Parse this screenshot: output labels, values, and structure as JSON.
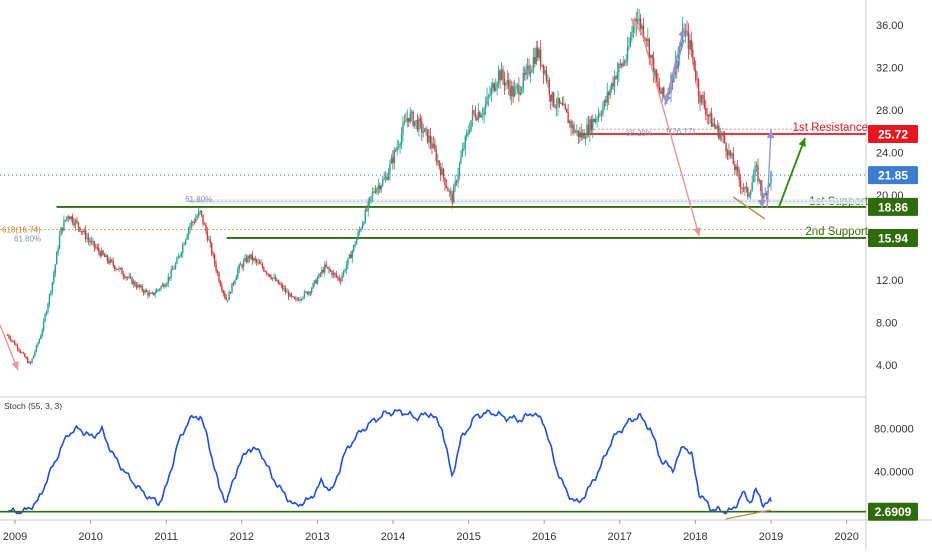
{
  "chart_data": [
    {
      "panel": "price",
      "type": "candlestick",
      "x_range": [
        2008.9,
        2020.9
      ],
      "ylim": [
        2,
        38.5
      ],
      "y_ticks": [
        "4.00",
        "8.00",
        "12.00",
        "16.00",
        "20.00",
        "24.00",
        "28.00",
        "32.00",
        "36.00"
      ],
      "y_tick_values": [
        4,
        8,
        12,
        16,
        20,
        24,
        28,
        32,
        36
      ],
      "grid": false,
      "price_path": [
        [
          2008.9,
          6.8
        ],
        [
          2009.05,
          5.5
        ],
        [
          2009.2,
          4.0
        ],
        [
          2009.35,
          7.0
        ],
        [
          2009.5,
          12.0
        ],
        [
          2009.6,
          16.5
        ],
        [
          2009.7,
          18.2
        ],
        [
          2009.85,
          17.0
        ],
        [
          2010.0,
          15.5
        ],
        [
          2010.2,
          14.0
        ],
        [
          2010.4,
          12.8
        ],
        [
          2010.6,
          11.5
        ],
        [
          2010.8,
          10.5
        ],
        [
          2011.0,
          11.8
        ],
        [
          2011.15,
          13.8
        ],
        [
          2011.3,
          17.0
        ],
        [
          2011.45,
          18.3
        ],
        [
          2011.55,
          16.0
        ],
        [
          2011.7,
          12.0
        ],
        [
          2011.8,
          10.0
        ],
        [
          2011.95,
          13.0
        ],
        [
          2012.1,
          14.2
        ],
        [
          2012.3,
          13.0
        ],
        [
          2012.5,
          11.5
        ],
        [
          2012.7,
          10.0
        ],
        [
          2012.9,
          11.0
        ],
        [
          2013.1,
          13.2
        ],
        [
          2013.3,
          12.0
        ],
        [
          2013.45,
          14.5
        ],
        [
          2013.6,
          17.5
        ],
        [
          2013.75,
          20.5
        ],
        [
          2013.9,
          21.5
        ],
        [
          2014.05,
          24.5
        ],
        [
          2014.2,
          27.5
        ],
        [
          2014.35,
          26.5
        ],
        [
          2014.5,
          25.0
        ],
        [
          2014.65,
          22.0
        ],
        [
          2014.78,
          19.5
        ],
        [
          2014.9,
          23.5
        ],
        [
          2015.05,
          27.5
        ],
        [
          2015.2,
          28.0
        ],
        [
          2015.4,
          31.5
        ],
        [
          2015.6,
          29.5
        ],
        [
          2015.75,
          31.0
        ],
        [
          2015.9,
          33.5
        ],
        [
          2016.0,
          32.0
        ],
        [
          2016.1,
          29.0
        ],
        [
          2016.25,
          28.0
        ],
        [
          2016.4,
          26.0
        ],
        [
          2016.5,
          25.5
        ],
        [
          2016.65,
          27.0
        ],
        [
          2016.8,
          28.5
        ],
        [
          2016.95,
          31.5
        ],
        [
          2017.1,
          33.0
        ],
        [
          2017.2,
          37.0
        ],
        [
          2017.35,
          35.0
        ],
        [
          2017.5,
          30.0
        ],
        [
          2017.6,
          29.0
        ],
        [
          2017.75,
          32.5
        ],
        [
          2017.85,
          35.5
        ],
        [
          2017.95,
          33.5
        ],
        [
          2018.05,
          29.5
        ],
        [
          2018.2,
          27.0
        ],
        [
          2018.35,
          25.5
        ],
        [
          2018.5,
          23.0
        ],
        [
          2018.6,
          21.0
        ],
        [
          2018.7,
          20.0
        ],
        [
          2018.8,
          22.5
        ],
        [
          2018.9,
          19.5
        ],
        [
          2019.0,
          21.85
        ]
      ],
      "horizontal_levels": [
        {
          "label": "1st Resistance",
          "value": 25.72,
          "price_tag": "25.72",
          "color": "#e8171f"
        },
        {
          "label": "1st Support",
          "value": 18.86,
          "price_tag": "18.86",
          "color": "#2f6b0a"
        },
        {
          "label": "2nd Support",
          "value": 15.94,
          "price_tag": "15.94",
          "color": "#2f6b0a"
        },
        {
          "value": 21.85,
          "price_tag": "21.85",
          "color": "#3a7dd1",
          "role": "last price"
        }
      ],
      "annotations": [
        "38.20%",
        "1(26.17)",
        "61.80%",
        "618(16.74)",
        "61.80%"
      ]
    },
    {
      "panel": "oscillator",
      "type": "line",
      "indicator": "Stoch (55, 3, 3)",
      "x_ticks": [
        "2009",
        "2010",
        "2011",
        "2012",
        "2013",
        "2014",
        "2015",
        "2016",
        "2017",
        "2018",
        "2019",
        "2020"
      ],
      "x_tick_values": [
        2009,
        2010,
        2011,
        2012,
        2013,
        2014,
        2015,
        2016,
        2017,
        2018,
        2019,
        2020
      ],
      "y_ticks": [
        "40.0000",
        "80.0000"
      ],
      "y_tick_values": [
        40,
        80
      ],
      "ylim": [
        0,
        100
      ],
      "support": {
        "value": 2.6909,
        "label": "2.6909",
        "color": "#2f6b0a"
      },
      "series": [
        {
          "color": "#1f4fd6",
          "points": [
            [
              2008.9,
              3
            ],
            [
              2009.1,
              2
            ],
            [
              2009.3,
              12
            ],
            [
              2009.5,
              45
            ],
            [
              2009.7,
              75
            ],
            [
              2009.85,
              80
            ],
            [
              2010.0,
              72
            ],
            [
              2010.15,
              78
            ],
            [
              2010.3,
              55
            ],
            [
              2010.5,
              35
            ],
            [
              2010.7,
              20
            ],
            [
              2010.9,
              10
            ],
            [
              2011.0,
              25
            ],
            [
              2011.15,
              65
            ],
            [
              2011.3,
              88
            ],
            [
              2011.45,
              92
            ],
            [
              2011.55,
              70
            ],
            [
              2011.7,
              25
            ],
            [
              2011.8,
              12
            ],
            [
              2011.95,
              45
            ],
            [
              2012.1,
              62
            ],
            [
              2012.25,
              58
            ],
            [
              2012.4,
              35
            ],
            [
              2012.55,
              20
            ],
            [
              2012.7,
              8
            ],
            [
              2012.9,
              14
            ],
            [
              2013.05,
              30
            ],
            [
              2013.2,
              22
            ],
            [
              2013.35,
              55
            ],
            [
              2013.5,
              72
            ],
            [
              2013.7,
              85
            ],
            [
              2013.9,
              94
            ],
            [
              2014.1,
              96
            ],
            [
              2014.3,
              90
            ],
            [
              2014.5,
              94
            ],
            [
              2014.65,
              80
            ],
            [
              2014.78,
              35
            ],
            [
              2014.9,
              70
            ],
            [
              2015.1,
              92
            ],
            [
              2015.3,
              95
            ],
            [
              2015.5,
              90
            ],
            [
              2015.7,
              88
            ],
            [
              2015.85,
              95
            ],
            [
              2016.0,
              85
            ],
            [
              2016.15,
              45
            ],
            [
              2016.3,
              20
            ],
            [
              2016.45,
              10
            ],
            [
              2016.6,
              25
            ],
            [
              2016.75,
              45
            ],
            [
              2016.9,
              70
            ],
            [
              2017.1,
              85
            ],
            [
              2017.25,
              92
            ],
            [
              2017.4,
              80
            ],
            [
              2017.55,
              50
            ],
            [
              2017.7,
              42
            ],
            [
              2017.85,
              65
            ],
            [
              2017.95,
              55
            ],
            [
              2018.05,
              20
            ],
            [
              2018.2,
              6
            ],
            [
              2018.35,
              3
            ],
            [
              2018.5,
              4
            ],
            [
              2018.62,
              20
            ],
            [
              2018.72,
              12
            ],
            [
              2018.8,
              22
            ],
            [
              2018.9,
              10
            ],
            [
              2019.0,
              12
            ]
          ]
        }
      ]
    }
  ]
}
